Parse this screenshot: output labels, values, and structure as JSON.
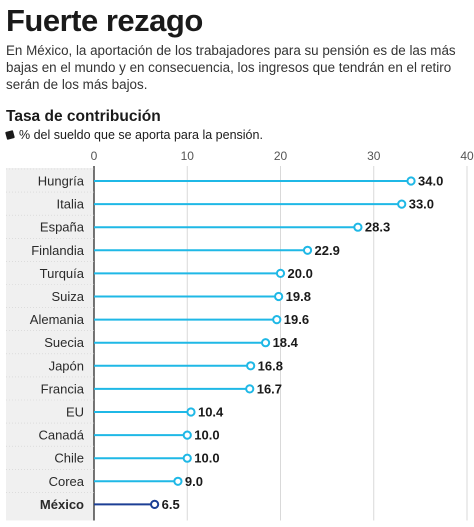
{
  "header": {
    "title": "Fuerte rezago",
    "subtitle": "En México, la aportación de los trabajadores para su pensión es de las más bajas en el mundo y en consecuencia, los ingresos que tendrán en el retiro serán de los más bajos."
  },
  "section_title": "Tasa de contribución",
  "legend": {
    "icon": "square-bullet-icon",
    "label": "% del sueldo que se aporta para la pensión."
  },
  "chart_data": {
    "type": "bar",
    "orientation": "horizontal",
    "style": "lollipop",
    "categories": [
      "Hungría",
      "Italia",
      "España",
      "Finlandia",
      "Turquía",
      "Suiza",
      "Alemania",
      "Suecia",
      "Japón",
      "Francia",
      "EU",
      "Canadá",
      "Chile",
      "Corea",
      "México"
    ],
    "values": [
      34.0,
      33.0,
      28.3,
      22.9,
      20.0,
      19.8,
      19.6,
      18.4,
      16.8,
      16.7,
      10.4,
      10.0,
      10.0,
      9.0,
      6.5
    ],
    "value_labels": [
      "34.0",
      "33.0",
      "28.3",
      "22.9",
      "20.0",
      "19.8",
      "19.6",
      "18.4",
      "16.8",
      "16.7",
      "10.4",
      "10.0",
      "10.0",
      "9.0",
      "6.5"
    ],
    "highlight": "México",
    "xlim": [
      0,
      40
    ],
    "xticks": [
      "0",
      "10",
      "20",
      "30",
      "40"
    ],
    "xtick_values": [
      0,
      10,
      20,
      30,
      40
    ],
    "xaxis_position": "top",
    "grid": true,
    "colors": {
      "bar": "#1fb8e6",
      "highlight": "#1c3f95",
      "grid": "#d9d9d9",
      "label_band": "#f0f0f0",
      "axis": "#1a1a1a"
    }
  }
}
